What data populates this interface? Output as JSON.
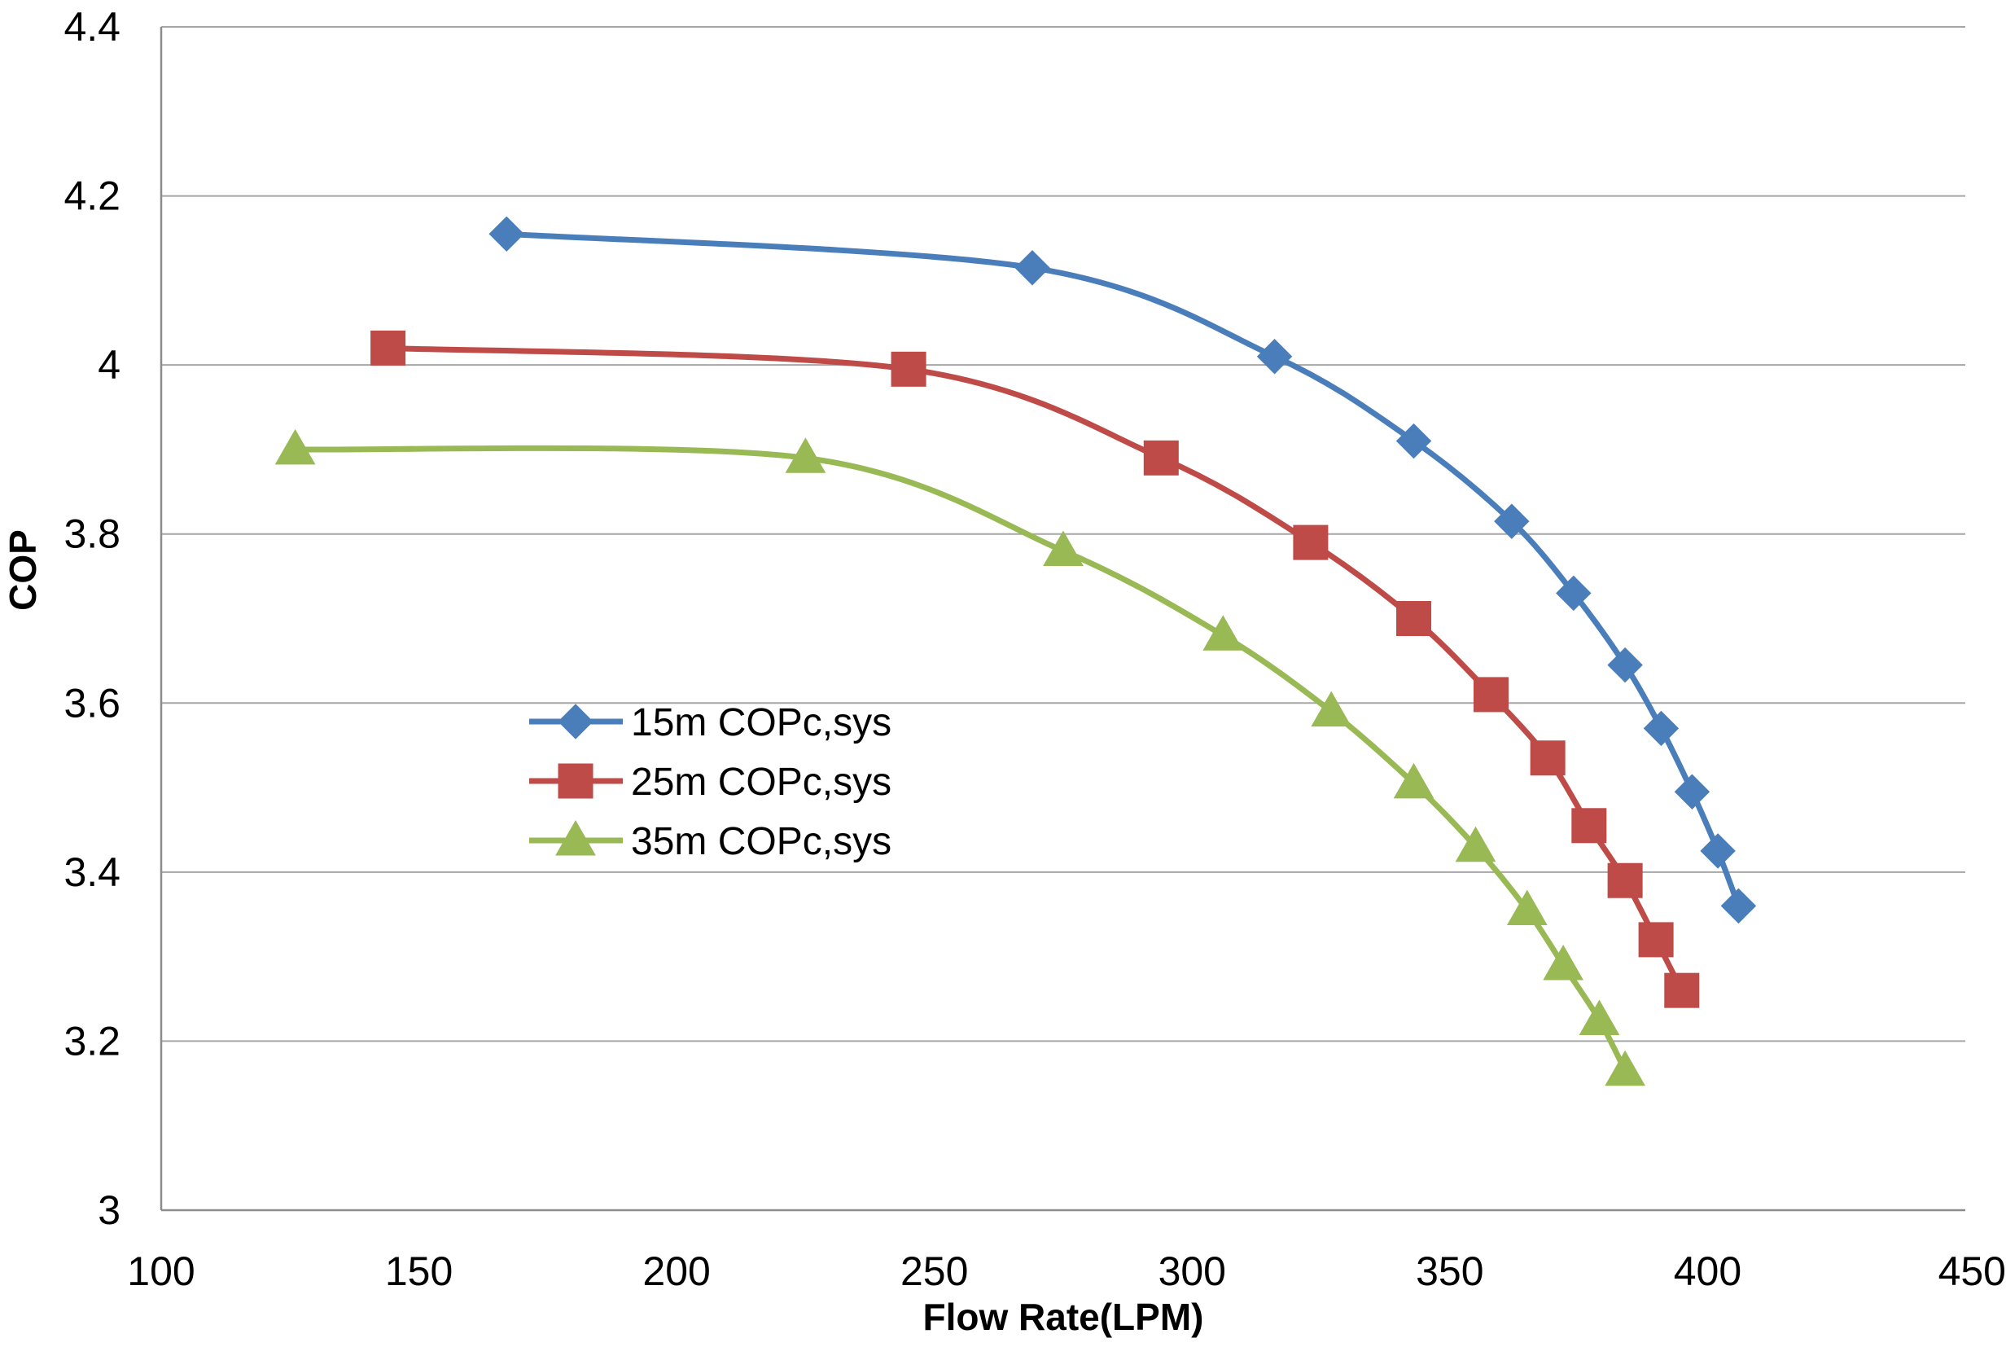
{
  "chart_data": {
    "type": "line",
    "title": "",
    "xlabel": "Flow Rate(LPM)",
    "ylabel": "COP",
    "xlim": [
      100,
      450
    ],
    "ylim": [
      3,
      4.4
    ],
    "xticks": [
      "100",
      "150",
      "200",
      "250",
      "300",
      "350",
      "400",
      "450"
    ],
    "yticks": [
      "3",
      "3.2",
      "3.4",
      "3.6",
      "3.8",
      "4",
      "4.2",
      "4.4"
    ],
    "grid": "horizontal",
    "legend_position": "center-left",
    "series": [
      {
        "name": "15m COPc,sys",
        "color": "#4a7ebb",
        "marker": "diamond",
        "x": [
          167,
          269,
          316,
          343,
          362,
          374,
          384,
          391,
          397,
          402,
          406
        ],
        "y": [
          4.155,
          4.115,
          4.01,
          3.91,
          3.815,
          3.73,
          3.645,
          3.57,
          3.495,
          3.425,
          3.36
        ]
      },
      {
        "name": "25m COPc,sys",
        "color": "#be4b48",
        "marker": "square",
        "x": [
          144,
          245,
          294,
          323,
          343,
          358,
          369,
          377,
          384,
          390,
          395
        ],
        "y": [
          4.02,
          3.995,
          3.89,
          3.79,
          3.7,
          3.61,
          3.535,
          3.455,
          3.39,
          3.32,
          3.26
        ]
      },
      {
        "name": "35m COPc,sys",
        "color": "#98b954",
        "marker": "triangle",
        "x": [
          126,
          225,
          275,
          306,
          327,
          343,
          355,
          365,
          372,
          379,
          384
        ],
        "y": [
          3.9,
          3.89,
          3.78,
          3.68,
          3.59,
          3.505,
          3.43,
          3.355,
          3.29,
          3.225,
          3.165
        ]
      }
    ]
  }
}
